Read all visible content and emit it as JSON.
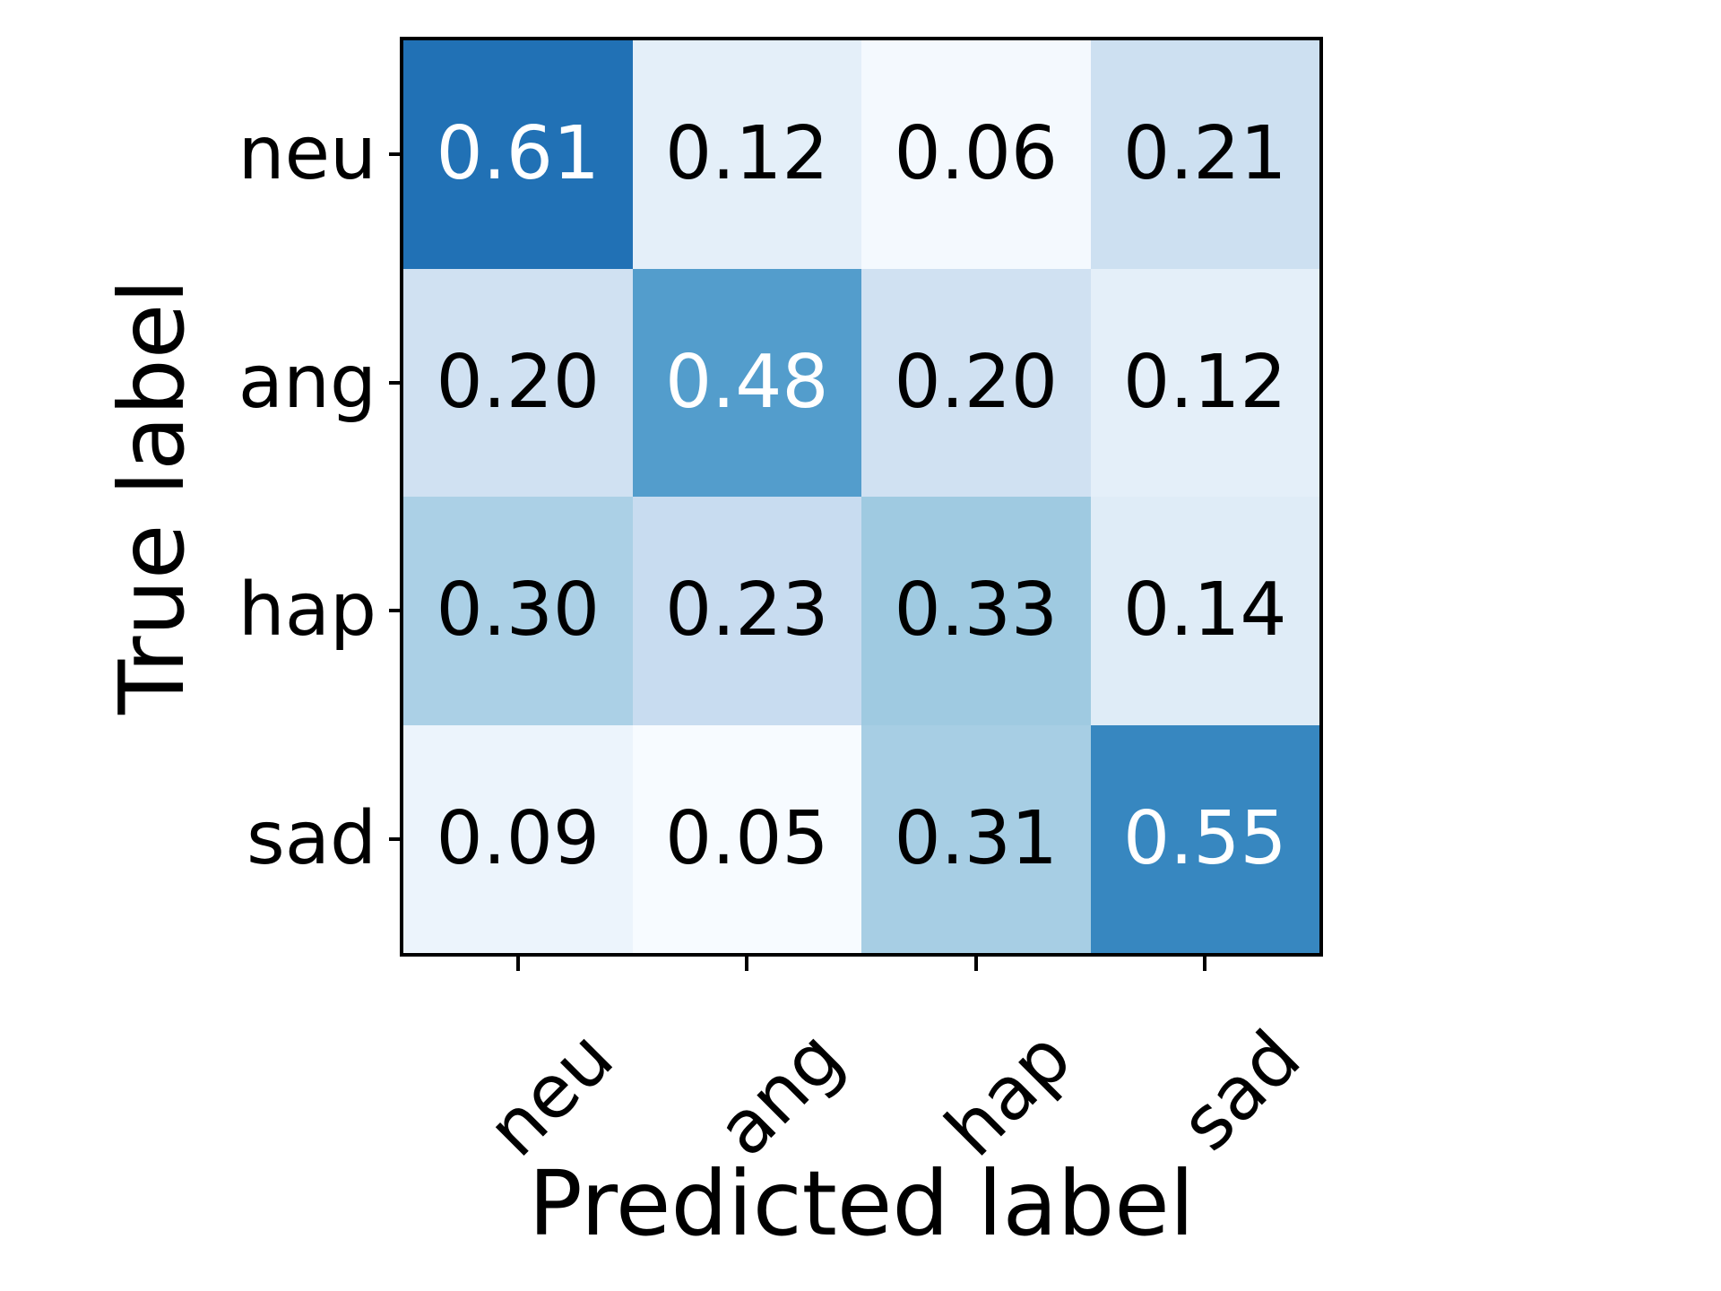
{
  "figure": {
    "background": "#ffffff",
    "axis_color": "#000000"
  },
  "chart_data": {
    "type": "heatmap",
    "colormap": "Blues",
    "title": "",
    "xlabel": "Predicted label",
    "ylabel": "True label",
    "x_labels": [
      "neu",
      "ang",
      "hap",
      "sad"
    ],
    "y_labels": [
      "neu",
      "ang",
      "hap",
      "sad"
    ],
    "x_tick_rotation_deg": 45,
    "grid": false,
    "legend": false,
    "values": [
      [
        0.61,
        0.12,
        0.06,
        0.21
      ],
      [
        0.2,
        0.48,
        0.2,
        0.12
      ],
      [
        0.3,
        0.23,
        0.33,
        0.14
      ],
      [
        0.09,
        0.05,
        0.31,
        0.55
      ]
    ],
    "display_values": [
      [
        "0.61",
        "0.12",
        "0.06",
        "0.21"
      ],
      [
        "0.20",
        "0.48",
        "0.20",
        "0.12"
      ],
      [
        "0.30",
        "0.23",
        "0.33",
        "0.14"
      ],
      [
        "0.09",
        "0.05",
        "0.31",
        "0.55"
      ]
    ],
    "cell_colors": [
      [
        "#2171b5",
        "#e4eff9",
        "#f4f9fe",
        "#cde0f1"
      ],
      [
        "#d0e1f2",
        "#539dcc",
        "#d0e1f2",
        "#e4eff9"
      ],
      [
        "#abd0e6",
        "#c8dcf0",
        "#9fcae1",
        "#dfecf7"
      ],
      [
        "#ecf4fc",
        "#f7fbff",
        "#a7cee4",
        "#3787c0"
      ]
    ],
    "text_colors": [
      [
        "#ffffff",
        "#000000",
        "#000000",
        "#000000"
      ],
      [
        "#000000",
        "#ffffff",
        "#000000",
        "#000000"
      ],
      [
        "#000000",
        "#000000",
        "#000000",
        "#000000"
      ],
      [
        "#000000",
        "#000000",
        "#000000",
        "#ffffff"
      ]
    ]
  }
}
